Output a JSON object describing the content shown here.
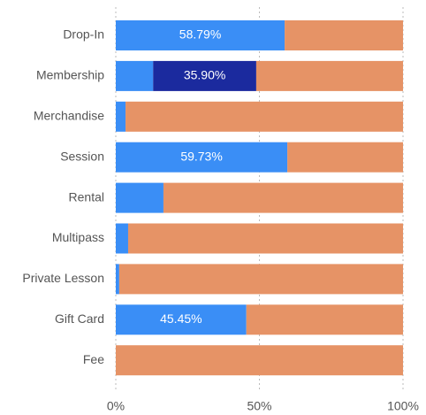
{
  "chart_data": {
    "type": "stacked-bar-horizontal",
    "categories": [
      "Drop-In",
      "Membership",
      "Merchandise",
      "Session",
      "Rental",
      "Multipass",
      "Private Lesson",
      "Gift Card",
      "Fee"
    ],
    "series": [
      {
        "color": "#3a8ef6",
        "values": [
          58.79,
          13.0,
          3.4,
          59.73,
          16.6,
          4.3,
          1.2,
          45.45,
          0
        ],
        "value_labels": [
          "58.79%",
          null,
          null,
          "59.73%",
          null,
          null,
          null,
          "45.45%",
          null
        ]
      },
      {
        "color": "#1b2a9e",
        "values": [
          0,
          35.9,
          0,
          0,
          0,
          0,
          0,
          0,
          0
        ],
        "value_labels": [
          null,
          "35.90%",
          null,
          null,
          null,
          null,
          null,
          null,
          null
        ]
      },
      {
        "color": "#e69366",
        "values": [
          41.21,
          51.1,
          96.6,
          40.27,
          83.4,
          95.7,
          98.8,
          54.55,
          100
        ],
        "value_labels": [
          null,
          null,
          null,
          null,
          null,
          null,
          null,
          null,
          null
        ]
      }
    ],
    "xlim": [
      0,
      100
    ],
    "xticks": [
      {
        "value": 0,
        "label": "0%"
      },
      {
        "value": 50,
        "label": "50%"
      },
      {
        "value": 100,
        "label": "100%"
      }
    ],
    "grid": true
  }
}
